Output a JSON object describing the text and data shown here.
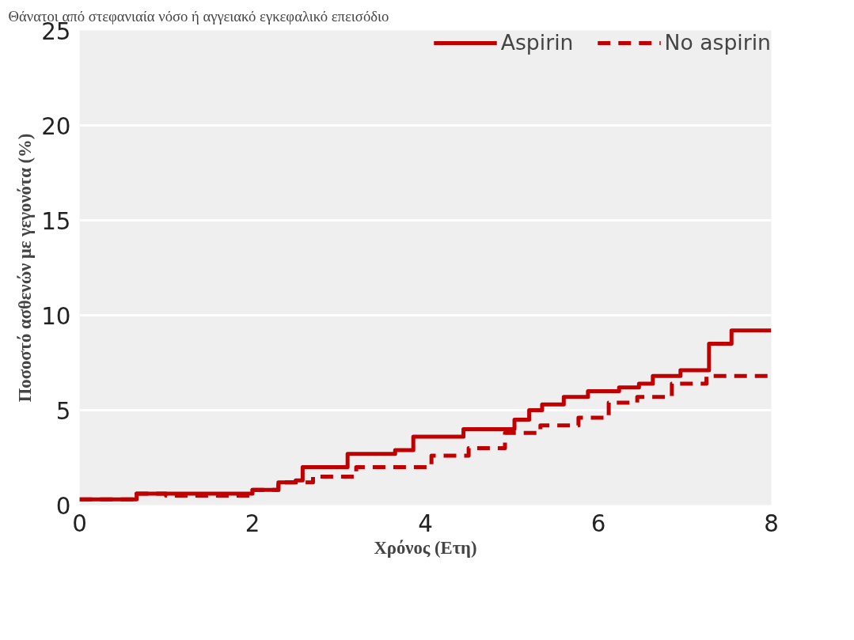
{
  "chart_data": {
    "type": "step",
    "subtitle": "Θάνατοι από στεφανιαία νόσο ή αγγειακό εγκεφαλικό επεισόδιο",
    "xlabel": "Χρόνος (Ετη)",
    "ylabel": "Ποσοστό ασθενών με γεγονότα (%)",
    "xlim": [
      0,
      8
    ],
    "ylim": [
      0,
      25
    ],
    "xticks": [
      0,
      2,
      4,
      6,
      8
    ],
    "yticks": [
      0,
      5,
      10,
      15,
      20,
      25
    ],
    "grid": "y",
    "legend": "top right",
    "series": [
      {
        "name": "Aspirin",
        "color": "#c00000",
        "line_style": "solid",
        "x": [
          0,
          0.66,
          2.0,
          2.3,
          2.5,
          2.58,
          3.1,
          3.65,
          3.86,
          4.44,
          5.03,
          5.2,
          5.35,
          5.6,
          5.88,
          6.24,
          6.47,
          6.63,
          6.95,
          7.28,
          7.54,
          8
        ],
        "values": [
          0.3,
          0.6,
          0.8,
          1.2,
          1.3,
          2.0,
          2.7,
          2.9,
          3.6,
          4.0,
          4.5,
          5.0,
          5.3,
          5.7,
          6.0,
          6.2,
          6.4,
          6.8,
          7.1,
          8.5,
          9.2,
          9.2
        ]
      },
      {
        "name": "No aspirin",
        "color": "#c00000",
        "line_style": "dashed",
        "x": [
          0,
          0.66,
          1.0,
          2.0,
          2.3,
          2.7,
          3.2,
          4.07,
          4.5,
          4.92,
          5.33,
          5.77,
          6.12,
          6.45,
          6.85,
          7.25,
          8
        ],
        "values": [
          0.3,
          0.6,
          0.5,
          0.8,
          1.2,
          1.5,
          2.0,
          2.6,
          3.0,
          3.8,
          4.2,
          4.6,
          5.4,
          5.7,
          6.4,
          6.8,
          6.8
        ]
      }
    ]
  }
}
